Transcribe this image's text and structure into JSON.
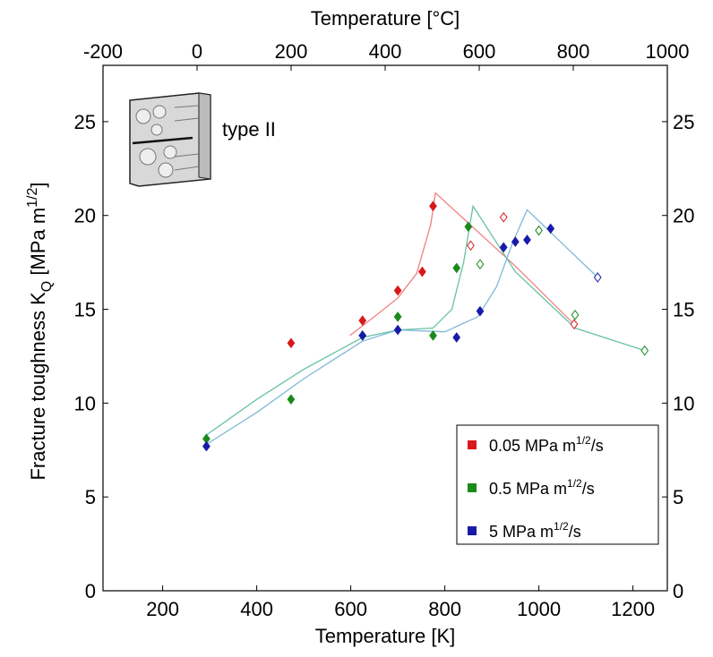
{
  "chart_data": {
    "type": "scatter",
    "xlabel": "Temperature [K]",
    "x2label": "Temperature [°C]",
    "ylabel_parts": [
      "Fracture toughness K",
      "Q",
      " [MPa m",
      "1/2",
      "]"
    ],
    "annotation": "type II",
    "xlim": [
      73.15,
      1273.15
    ],
    "xticks": [
      200,
      400,
      600,
      800,
      1000,
      1200
    ],
    "x2lim": [
      -200,
      1000
    ],
    "x2ticks": [
      -200,
      0,
      200,
      400,
      600,
      800,
      1000
    ],
    "ylim": [
      0,
      28
    ],
    "yticks": [
      0,
      5,
      10,
      15,
      20,
      25
    ],
    "legend": "lower right",
    "series": [
      {
        "name_parts": [
          "0.05 MPa m",
          "1/2",
          "/s"
        ],
        "color": "#d7191c",
        "x": [
          473,
          625,
          700,
          752,
          775,
          855,
          925,
          1075
        ],
        "values": [
          13.2,
          14.4,
          16.0,
          17.0,
          20.5,
          18.4,
          19.9,
          14.2
        ],
        "open": [
          false,
          false,
          false,
          false,
          false,
          true,
          true,
          true
        ]
      },
      {
        "name_parts": [
          "0.5 MPa m",
          "1/2",
          "/s"
        ],
        "color": "#1a8a1a",
        "x": [
          293,
          473,
          625,
          700,
          775,
          825,
          850,
          875,
          1000,
          1077,
          1225
        ],
        "values": [
          8.1,
          10.2,
          13.6,
          14.6,
          13.6,
          17.2,
          19.4,
          17.4,
          19.2,
          14.7,
          12.8
        ],
        "open": [
          false,
          false,
          false,
          false,
          false,
          false,
          false,
          true,
          true,
          true,
          true
        ]
      },
      {
        "name_parts": [
          "5 MPa m",
          "1/2",
          "/s"
        ],
        "color": "#1a1aa8",
        "x": [
          293,
          625,
          700,
          825,
          875,
          925,
          950,
          975,
          1025,
          1125
        ],
        "values": [
          7.7,
          13.6,
          13.9,
          13.5,
          14.9,
          18.3,
          18.6,
          18.7,
          19.3,
          16.7
        ],
        "open": [
          false,
          false,
          false,
          false,
          false,
          false,
          false,
          false,
          false,
          true
        ]
      }
    ],
    "curves": [
      {
        "color": "#f08080",
        "x": [
          598,
          650,
          700,
          740,
          770,
          780,
          850,
          950,
          1075
        ],
        "values": [
          13.6,
          14.6,
          15.6,
          16.9,
          19.5,
          21.2,
          19.6,
          17.3,
          14.2
        ]
      },
      {
        "color": "#66c2a5",
        "x": [
          293,
          400,
          500,
          625,
          700,
          775,
          815,
          840,
          860,
          950,
          1077,
          1225
        ],
        "values": [
          8.3,
          10.2,
          11.8,
          13.5,
          13.9,
          14.0,
          15.0,
          17.5,
          20.5,
          17.0,
          14.0,
          12.8
        ]
      },
      {
        "color": "#7fb8d8",
        "x": [
          293,
          400,
          500,
          625,
          700,
          800,
          870,
          910,
          945,
          975,
          1050,
          1125
        ],
        "values": [
          7.8,
          9.5,
          11.3,
          13.3,
          13.9,
          13.8,
          14.6,
          16.2,
          18.6,
          20.3,
          18.5,
          16.7
        ]
      }
    ]
  }
}
